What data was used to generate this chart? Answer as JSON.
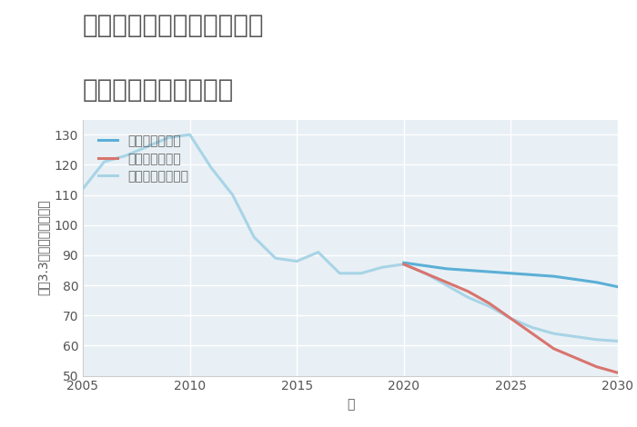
{
  "title_line1": "兵庫県豊岡市日高町栃本の",
  "title_line2": "中古戸建ての価格推移",
  "xlabel": "年",
  "ylabel": "坪（3.3㎡）単価（万円）",
  "background_color": "#ffffff",
  "plot_background": "#e8f0f5",
  "grid_color": "#ffffff",
  "xlim": [
    2005,
    2030
  ],
  "ylim": [
    50,
    135
  ],
  "yticks": [
    50,
    60,
    70,
    80,
    90,
    100,
    110,
    120,
    130
  ],
  "xticks": [
    2005,
    2010,
    2015,
    2020,
    2025,
    2030
  ],
  "good_scenario": {
    "label": "グッドシナリオ",
    "color": "#5bafd6",
    "x": [
      2020,
      2021,
      2022,
      2023,
      2024,
      2025,
      2026,
      2027,
      2028,
      2029,
      2030
    ],
    "y": [
      87.5,
      86.5,
      85.5,
      85.0,
      84.5,
      84.0,
      83.5,
      83.0,
      82.0,
      81.0,
      79.5
    ]
  },
  "bad_scenario": {
    "label": "バッドシナリオ",
    "color": "#d9746e",
    "x": [
      2020,
      2021,
      2022,
      2023,
      2024,
      2025,
      2026,
      2027,
      2028,
      2029,
      2030
    ],
    "y": [
      87.0,
      84.0,
      81.0,
      78.0,
      74.0,
      69.0,
      64.0,
      59.0,
      56.0,
      53.0,
      51.0
    ]
  },
  "normal_scenario": {
    "label": "ノーマルシナリオ",
    "color": "#a8d4e6",
    "x_hist": [
      2005,
      2006,
      2007,
      2008,
      2009,
      2010,
      2011,
      2012,
      2013,
      2014,
      2015,
      2016,
      2017,
      2018,
      2019,
      2020
    ],
    "y_hist": [
      112,
      121,
      123,
      126,
      129,
      130,
      119,
      110,
      96,
      89,
      88,
      91,
      84,
      84,
      86,
      87
    ],
    "x_fut": [
      2020,
      2021,
      2022,
      2023,
      2024,
      2025,
      2026,
      2027,
      2028,
      2029,
      2030
    ],
    "y_fut": [
      87.0,
      84.0,
      80.0,
      76.0,
      73.0,
      69.0,
      66.0,
      64.0,
      63.0,
      62.0,
      61.5
    ]
  },
  "title_color": "#555555",
  "title_fontsize": 20,
  "legend_fontsize": 10,
  "axis_fontsize": 10,
  "tick_fontsize": 10,
  "line_width": 2.2
}
